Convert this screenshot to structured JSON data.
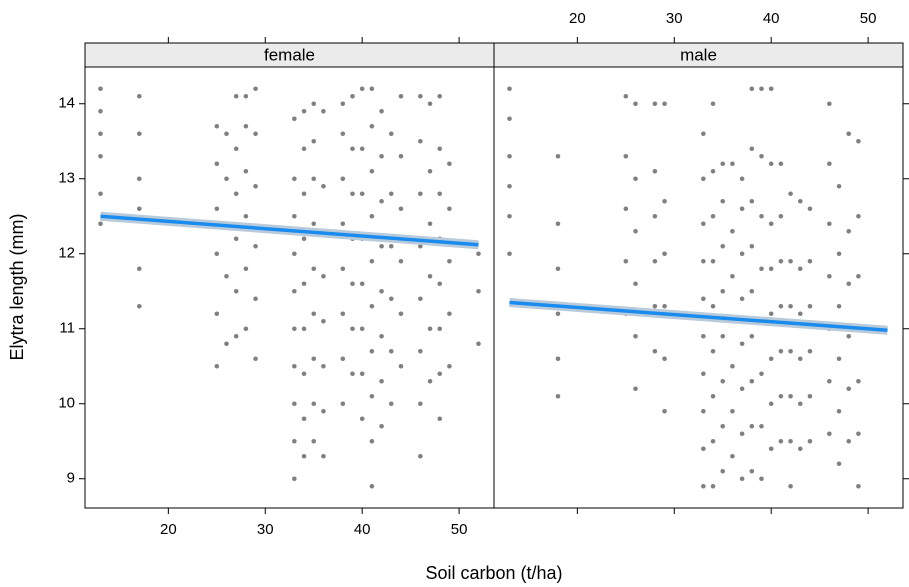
{
  "chart_data": {
    "type": "scatter",
    "x_label": "Soil carbon (t/ha)",
    "y_label": "Elytra length (mm)",
    "xlim": [
      11.4,
      53.6
    ],
    "ylim": [
      8.61,
      14.49
    ],
    "xticks": [
      20,
      30,
      40,
      50
    ],
    "yticks": [
      9,
      10,
      11,
      12,
      13,
      14
    ],
    "point_color": "#808080",
    "fit_color": "#1a8cf0",
    "band_color": "#b9cadb",
    "panels": [
      {
        "name": "female",
        "columns": [
          {
            "x": 13,
            "y": [
              12.4,
              12.8,
              13.3,
              13.6,
              13.9,
              14.2
            ]
          },
          {
            "x": 17,
            "y": [
              11.3,
              11.8,
              12.6,
              13.0,
              13.6,
              14.1
            ]
          },
          {
            "x": 25,
            "y": [
              10.5,
              11.2,
              12.0,
              12.6,
              13.2,
              13.7
            ]
          },
          {
            "x": 26,
            "y": [
              10.8,
              11.7,
              12.4,
              13.0,
              13.6
            ]
          },
          {
            "x": 27,
            "y": [
              10.9,
              11.5,
              12.2,
              12.8,
              13.4,
              14.1
            ]
          },
          {
            "x": 28,
            "y": [
              11.0,
              11.8,
              12.5,
              13.1,
              13.7,
              14.1
            ]
          },
          {
            "x": 29,
            "y": [
              10.6,
              11.4,
              12.1,
              12.9,
              13.6,
              14.2
            ]
          },
          {
            "x": 33,
            "y": [
              9.0,
              9.5,
              10.0,
              10.5,
              11.0,
              11.5,
              12.0,
              12.5,
              13.0,
              13.8
            ]
          },
          {
            "x": 34,
            "y": [
              9.3,
              9.8,
              10.4,
              11.0,
              11.6,
              12.2,
              12.8,
              13.4,
              13.9
            ]
          },
          {
            "x": 35,
            "y": [
              9.5,
              10.0,
              10.6,
              11.2,
              11.8,
              12.4,
              13.0,
              13.5,
              14.0
            ]
          },
          {
            "x": 36,
            "y": [
              9.3,
              9.9,
              10.5,
              11.1,
              11.7,
              12.3,
              12.9,
              13.9
            ]
          },
          {
            "x": 38,
            "y": [
              10.0,
              10.6,
              11.2,
              11.8,
              12.4,
              13.0,
              13.6,
              14.0
            ]
          },
          {
            "x": 39,
            "y": [
              10.4,
              11.0,
              11.6,
              12.2,
              12.8,
              13.4,
              14.1
            ]
          },
          {
            "x": 40,
            "y": [
              9.8,
              10.4,
              11.0,
              11.6,
              12.2,
              12.8,
              13.4,
              14.2
            ]
          },
          {
            "x": 41,
            "y": [
              8.9,
              9.5,
              10.1,
              10.7,
              11.3,
              11.9,
              12.5,
              13.1,
              13.7,
              14.2
            ]
          },
          {
            "x": 42,
            "y": [
              9.7,
              10.3,
              10.9,
              11.5,
              12.1,
              12.7,
              13.3,
              13.9
            ]
          },
          {
            "x": 43,
            "y": [
              10.0,
              10.7,
              11.4,
              12.1,
              12.8,
              13.6
            ]
          },
          {
            "x": 44,
            "y": [
              10.5,
              11.2,
              11.9,
              12.6,
              13.3,
              14.1
            ]
          },
          {
            "x": 46,
            "y": [
              9.3,
              10.0,
              10.7,
              11.4,
              12.1,
              12.8,
              13.5,
              14.1
            ]
          },
          {
            "x": 47,
            "y": [
              10.3,
              11.0,
              11.7,
              12.4,
              13.1,
              14.0
            ]
          },
          {
            "x": 48,
            "y": [
              9.8,
              10.4,
              11.0,
              11.6,
              12.2,
              12.8,
              13.4,
              14.1
            ]
          },
          {
            "x": 49,
            "y": [
              10.5,
              11.2,
              11.9,
              12.6,
              13.2
            ]
          },
          {
            "x": 52,
            "y": [
              10.8,
              11.5,
              12.0
            ]
          }
        ],
        "fit": {
          "x": [
            13,
            52
          ],
          "y": [
            12.5,
            12.12
          ]
        }
      },
      {
        "name": "male",
        "columns": [
          {
            "x": 13,
            "y": [
              12.0,
              12.5,
              12.9,
              13.3,
              13.8,
              14.2
            ]
          },
          {
            "x": 18,
            "y": [
              10.1,
              10.6,
              11.2,
              11.8,
              12.4,
              13.3
            ]
          },
          {
            "x": 25,
            "y": [
              11.2,
              11.9,
              12.6,
              13.3,
              14.1
            ]
          },
          {
            "x": 26,
            "y": [
              10.2,
              10.9,
              11.6,
              12.3,
              13.0,
              14.0
            ]
          },
          {
            "x": 28,
            "y": [
              10.7,
              11.3,
              11.9,
              12.5,
              13.1,
              14.0
            ]
          },
          {
            "x": 29,
            "y": [
              9.9,
              10.6,
              11.3,
              12.0,
              12.7,
              14.0
            ]
          },
          {
            "x": 33,
            "y": [
              8.9,
              9.4,
              9.9,
              10.4,
              10.9,
              11.4,
              11.9,
              12.4,
              13.0,
              13.6
            ]
          },
          {
            "x": 34,
            "y": [
              8.9,
              9.5,
              10.1,
              10.7,
              11.3,
              11.9,
              12.5,
              13.1,
              14.0
            ]
          },
          {
            "x": 35,
            "y": [
              9.1,
              9.7,
              10.3,
              10.9,
              11.5,
              12.1,
              12.7,
              13.2
            ]
          },
          {
            "x": 36,
            "y": [
              9.3,
              9.9,
              10.5,
              11.1,
              11.7,
              12.3,
              13.2
            ]
          },
          {
            "x": 37,
            "y": [
              9.0,
              9.6,
              10.2,
              10.8,
              11.4,
              12.0,
              12.6,
              13.0
            ]
          },
          {
            "x": 38,
            "y": [
              9.1,
              9.7,
              10.3,
              10.9,
              11.5,
              12.1,
              12.7,
              13.4,
              14.2
            ]
          },
          {
            "x": 39,
            "y": [
              9.0,
              9.7,
              10.4,
              11.1,
              11.8,
              12.5,
              13.3,
              14.2
            ]
          },
          {
            "x": 40,
            "y": [
              9.4,
              10.0,
              10.6,
              11.2,
              11.8,
              12.4,
              13.2,
              14.2
            ]
          },
          {
            "x": 41,
            "y": [
              9.5,
              10.1,
              10.7,
              11.3,
              11.9,
              12.5,
              13.2
            ]
          },
          {
            "x": 42,
            "y": [
              8.9,
              9.5,
              10.1,
              10.7,
              11.3,
              11.9,
              12.8
            ]
          },
          {
            "x": 43,
            "y": [
              9.4,
              10.0,
              10.6,
              11.2,
              11.8,
              12.7
            ]
          },
          {
            "x": 44,
            "y": [
              9.5,
              10.1,
              10.7,
              11.3,
              11.9,
              12.6
            ]
          },
          {
            "x": 46,
            "y": [
              9.6,
              10.3,
              11.0,
              11.7,
              12.4,
              13.2,
              14.0
            ]
          },
          {
            "x": 47,
            "y": [
              9.2,
              9.9,
              10.6,
              11.3,
              12.0,
              12.9
            ]
          },
          {
            "x": 48,
            "y": [
              9.5,
              10.2,
              10.9,
              11.6,
              12.3,
              13.6
            ]
          },
          {
            "x": 49,
            "y": [
              8.9,
              9.6,
              10.3,
              11.0,
              11.7,
              12.5,
              13.5
            ]
          }
        ],
        "fit": {
          "x": [
            13,
            52
          ],
          "y": [
            11.35,
            10.98
          ]
        }
      }
    ]
  }
}
